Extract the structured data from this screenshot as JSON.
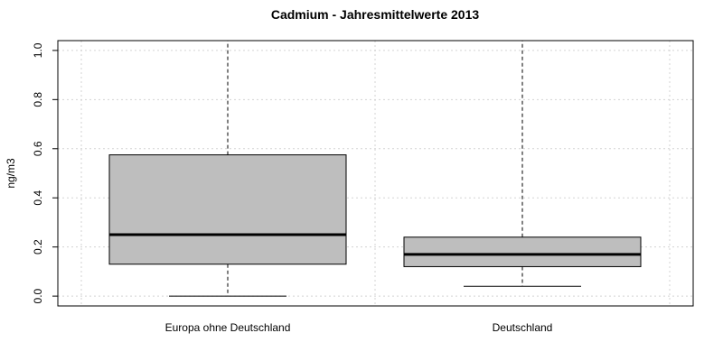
{
  "chart_data": {
    "type": "box",
    "title": "Cadmium - Jahresmittelwerte 2013",
    "xlabel": "",
    "ylabel": "ng/m3",
    "ylim": [
      -0.04,
      1.04
    ],
    "yticks": [
      "0.0",
      "0.2",
      "0.4",
      "0.6",
      "0.8",
      "1.0"
    ],
    "grid": true,
    "colors": {
      "box_fill": "#bebebe",
      "grid": "#d3d3d3"
    },
    "categories": [
      "Europa ohne Deutschland",
      "Deutschland"
    ],
    "boxes": [
      {
        "min": 0.0,
        "q1": 0.13,
        "median": 0.25,
        "q3": 0.575,
        "max": 1.04
      },
      {
        "min": 0.04,
        "q1": 0.12,
        "median": 0.17,
        "q3": 0.24,
        "max": 1.04
      }
    ]
  }
}
